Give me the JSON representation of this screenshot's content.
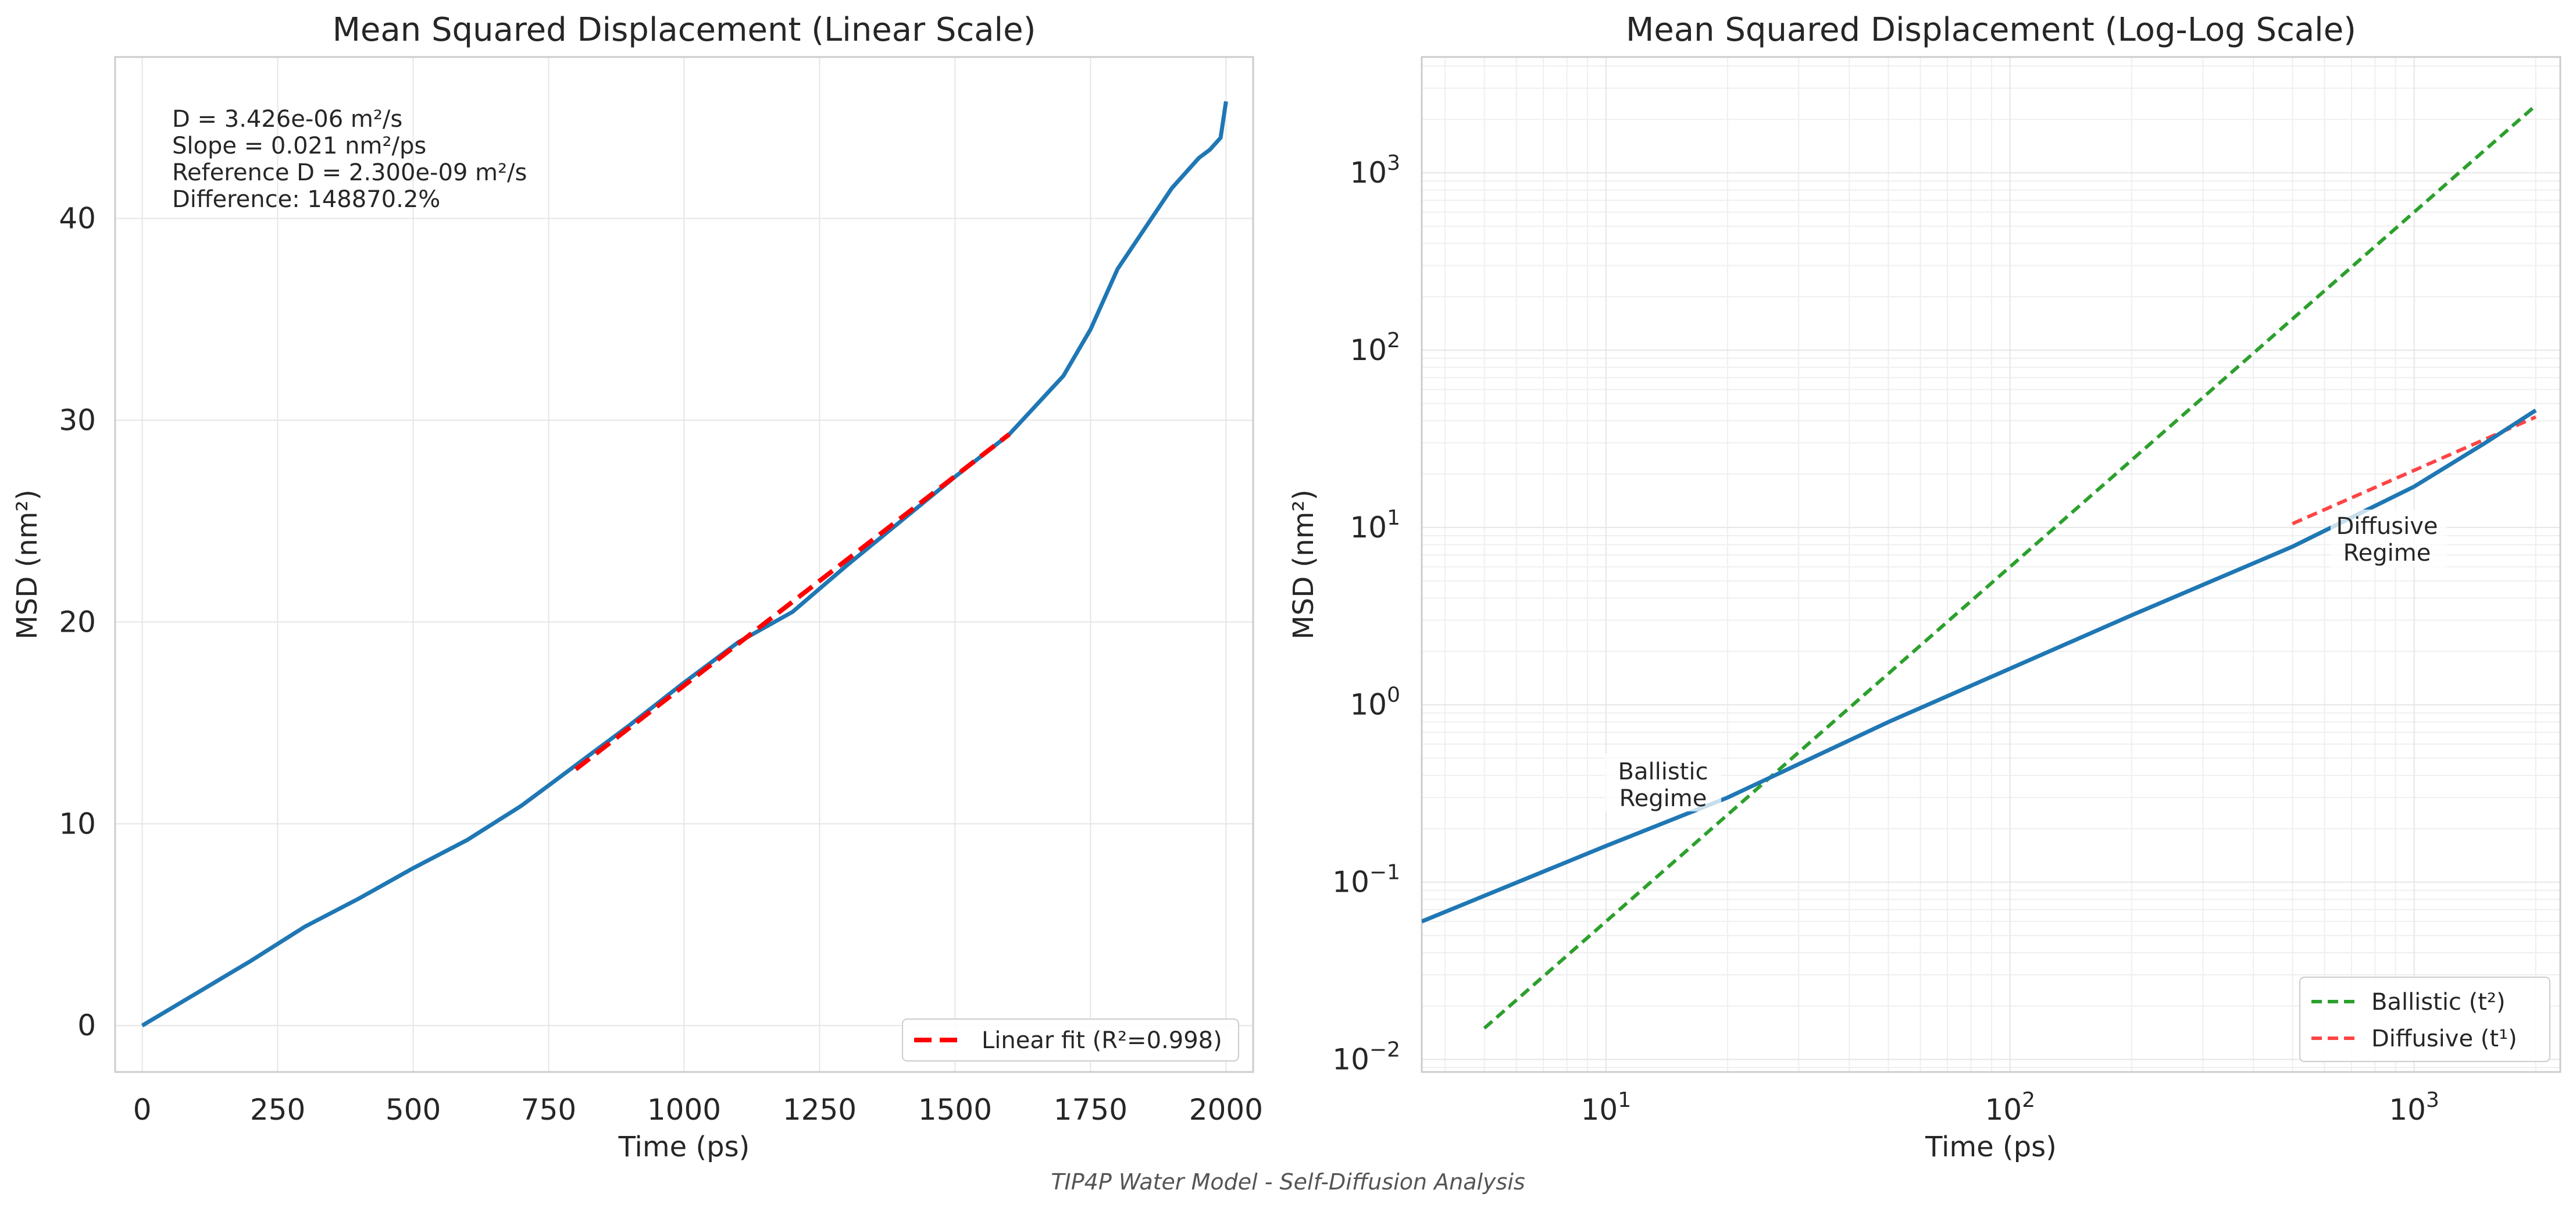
{
  "figure_caption": "TIP4P Water Model - Self-Diffusion Analysis",
  "colors": {
    "msd_line": "#1f77b4",
    "linear_fit": "#ff0000",
    "ballistic": "#2ca02c",
    "diffusive": "#ff4444",
    "grid": "#e6e6e6",
    "frame": "#cccccc",
    "text": "#262626"
  },
  "chart_data": [
    {
      "type": "line",
      "title": "Mean Squared Displacement (Linear Scale)",
      "xlabel": "Time (ps)",
      "ylabel": "MSD (nm²)",
      "xlim": [
        -50,
        2050
      ],
      "ylim": [
        -2.3,
        48
      ],
      "xticks": [
        0,
        250,
        500,
        750,
        1000,
        1250,
        1500,
        1750,
        2000
      ],
      "yticks": [
        0,
        10,
        20,
        30,
        40
      ],
      "grid": true,
      "legend_position": "lower-right",
      "annotation_lines": [
        "D = 3.426e-06 m²/s",
        "Slope = 0.021 nm²/ps",
        "Reference D = 2.300e-09 m²/s",
        "Difference: 148870.2%"
      ],
      "series": [
        {
          "style": "solid",
          "x": [
            0,
            100,
            200,
            300,
            400,
            500,
            600,
            700,
            750,
            800,
            900,
            1000,
            1100,
            1200,
            1300,
            1400,
            1500,
            1600,
            1700,
            1750,
            1800,
            1850,
            1900,
            1950,
            1970,
            1980,
            1990,
            2000
          ],
          "y": [
            0,
            1.6,
            3.2,
            4.9,
            6.3,
            7.8,
            9.2,
            10.9,
            11.9,
            12.9,
            14.9,
            17.0,
            19.0,
            20.5,
            22.8,
            25.0,
            27.2,
            29.3,
            32.2,
            34.5,
            37.5,
            39.5,
            41.5,
            43.0,
            43.4,
            43.7,
            44.0,
            45.8
          ]
        },
        {
          "name": "Linear fit (R²=0.998)",
          "style": "dashed",
          "x": [
            800,
            1600
          ],
          "y": [
            12.7,
            29.3
          ]
        }
      ]
    },
    {
      "type": "line",
      "title": "Mean Squared Displacement (Log-Log Scale)",
      "xlabel": "Time (ps)",
      "ylabel": "MSD (nm²)",
      "xscale": "log",
      "yscale": "log",
      "xlim": [
        3.5,
        2300
      ],
      "ylim": [
        0.0085,
        4500
      ],
      "xticks": [
        10,
        100,
        1000
      ],
      "xtick_labels": [
        "10",
        "1",
        "10",
        "2",
        "10",
        "3"
      ],
      "yticks": [
        0.01,
        0.1,
        1,
        10,
        100,
        1000
      ],
      "ytick_labels": [
        "10",
        "−2",
        "10",
        "−1",
        "10",
        "0",
        "10",
        "1",
        "10",
        "2",
        "10",
        "3"
      ],
      "grid": true,
      "legend_position": "lower-right",
      "annotations": [
        "Ballistic",
        "Regime",
        "Diffusive",
        "Regime"
      ],
      "series": [
        {
          "style": "solid",
          "x": [
            3.5,
            10,
            20,
            50,
            100,
            200,
            500,
            1000,
            1500,
            2000
          ],
          "y": [
            0.06,
            0.16,
            0.3,
            0.8,
            1.6,
            3.2,
            7.8,
            17,
            30,
            45.8
          ]
        },
        {
          "name": "Ballistic (t²)",
          "style": "dashed",
          "x": [
            5,
            2000
          ],
          "y": [
            0.015,
            2400
          ]
        },
        {
          "name": "Diffusive (t¹)",
          "style": "dashed",
          "x": [
            500,
            2000
          ],
          "y": [
            10.5,
            42
          ]
        }
      ]
    }
  ]
}
